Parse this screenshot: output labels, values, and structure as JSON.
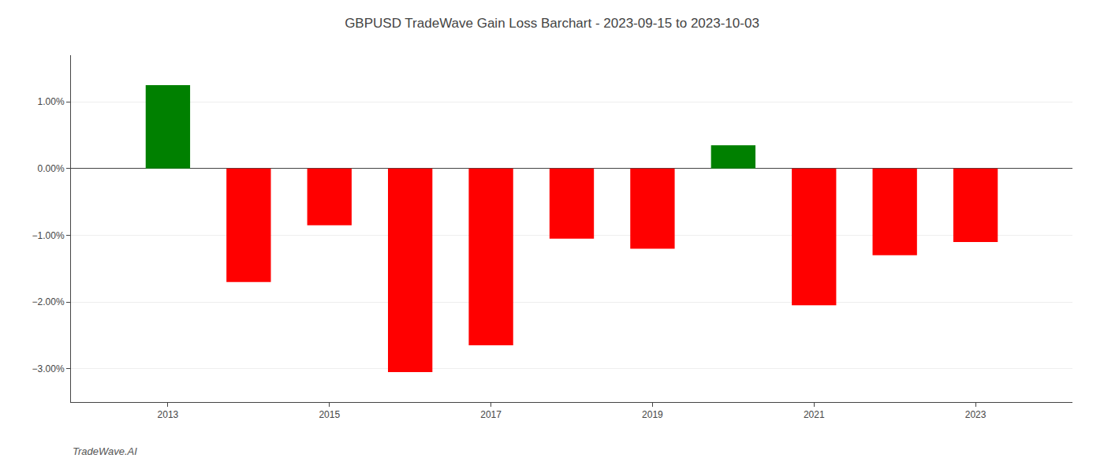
{
  "chart_data": {
    "type": "bar",
    "title": "GBPUSD TradeWave Gain Loss Barchart - 2023-09-15 to 2023-10-03",
    "annotations": [
      "TradeWave.AI"
    ],
    "x": [
      2013,
      2014,
      2015,
      2016,
      2017,
      2018,
      2019,
      2020,
      2021,
      2022,
      2023
    ],
    "values": [
      1.25,
      -1.7,
      -0.85,
      -3.05,
      -2.65,
      -1.05,
      -1.2,
      0.35,
      -2.05,
      -1.3,
      -1.1
    ],
    "colors": [
      "#008000",
      "#ff0000",
      "#ff0000",
      "#ff0000",
      "#ff0000",
      "#ff0000",
      "#ff0000",
      "#008000",
      "#ff0000",
      "#ff0000",
      "#ff0000"
    ],
    "xlim": [
      2011.8,
      2024.2
    ],
    "xticks": [
      2013,
      2015,
      2017,
      2019,
      2021,
      2023
    ],
    "ylim": [
      -3.5,
      1.7
    ],
    "yticks": [
      {
        "value": -3.0,
        "label": "−3.00%"
      },
      {
        "value": -2.0,
        "label": "−2.00%"
      },
      {
        "value": -1.0,
        "label": "−1.00%"
      },
      {
        "value": 0.0,
        "label": "0.00%"
      },
      {
        "value": 1.0,
        "label": "1.00%"
      }
    ],
    "grid": true
  }
}
